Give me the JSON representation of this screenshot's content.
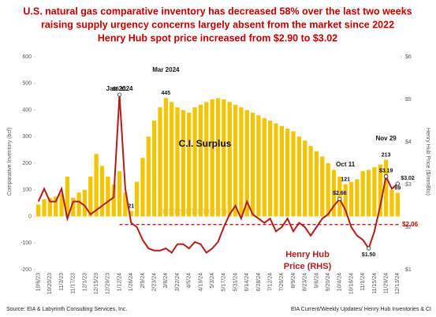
{
  "chart_data": {
    "type": "bar_line",
    "title": [
      "U.S. natural gas comparative inventory has decreased 58% over the last two weeks",
      "raising supply urgency concerns largely absent from the market since 2022",
      "Henry Hub spot price increased from $2.90 to $3.02"
    ],
    "y_label": "Comparative Inventory (bcf)",
    "y2_label": "Henry Hub Price ($/mmBtu)",
    "source_left": "Source: EIA & Labyrinth Consulting Services, Inc.",
    "source_right": "EIA Current/Weekly Updates/ Henry Hub Inventories & CI",
    "watermark": "aeberman.com",
    "annotations": [
      "Jan 2024",
      "Mar 2024",
      "C.I. Surplus",
      "Oct 11",
      "Nov 29",
      "Henry Hub",
      "Price (RHS)"
    ],
    "categories": [
      "10/6/23",
      null,
      "10/20/23",
      null,
      "11/3/23",
      null,
      "11/17/23",
      null,
      "12/1/23",
      null,
      "12/15/23",
      null,
      "12/29/23",
      null,
      "1/12/24",
      null,
      "1/26/24",
      null,
      "2/9/24",
      null,
      "2/23/24",
      null,
      "3/8/24",
      null,
      "3/22/24",
      null,
      "4/5/24",
      null,
      "4/19/24",
      null,
      "5/3/24",
      null,
      "5/17/24",
      null,
      "5/31/24",
      null,
      "6/14/24",
      null,
      "6/28/24",
      null,
      "7/12/24",
      null,
      "7/26/24",
      null,
      "8/9/24",
      null,
      "8/23/24",
      null,
      "9/6/24",
      null,
      "9/20/24",
      null,
      "10/4/24",
      null,
      "10/18/24",
      null,
      "11/1/24",
      null,
      "11/15/24",
      null,
      "11/29/24",
      null,
      "12/13/24"
    ],
    "series": [
      {
        "name": "C.I. Surplus",
        "type": "bar",
        "color": "#f5c400",
        "values": [
          45,
          65,
          70,
          75,
          85,
          150,
          70,
          90,
          100,
          150,
          235,
          190,
          150,
          120,
          170,
          90,
          21,
          130,
          220,
          300,
          360,
          410,
          445,
          430,
          410,
          400,
          390,
          410,
          420,
          430,
          440,
          445,
          440,
          430,
          420,
          410,
          400,
          390,
          380,
          370,
          360,
          350,
          340,
          330,
          320,
          300,
          285,
          265,
          245,
          225,
          200,
          175,
          150,
          121,
          130,
          140,
          170,
          175,
          185,
          195,
          213,
          100,
          89
        ],
        "value_labels": [
          null,
          null,
          null,
          null,
          null,
          null,
          null,
          null,
          null,
          null,
          null,
          null,
          null,
          null,
          null,
          null,
          "21",
          null,
          null,
          null,
          null,
          null,
          "445",
          null,
          null,
          null,
          null,
          null,
          null,
          null,
          null,
          null,
          null,
          null,
          null,
          null,
          null,
          null,
          null,
          null,
          null,
          null,
          null,
          null,
          null,
          null,
          null,
          null,
          null,
          null,
          null,
          null,
          null,
          "121",
          null,
          null,
          null,
          null,
          null,
          null,
          "213",
          null,
          "89"
        ]
      },
      {
        "name": "Henry Hub Price (RHS)",
        "type": "line",
        "axis": "y2",
        "color": "#b01c1c",
        "values": [
          2.6,
          2.9,
          2.6,
          2.6,
          2.9,
          2.2,
          2.6,
          2.6,
          2.5,
          2.3,
          2.4,
          2.5,
          2.6,
          2.7,
          5.11,
          2.9,
          2.1,
          2.0,
          1.7,
          1.5,
          1.45,
          1.45,
          1.5,
          1.4,
          1.6,
          1.6,
          1.5,
          1.65,
          1.6,
          1.4,
          1.5,
          1.65,
          2.0,
          2.3,
          2.5,
          2.2,
          2.6,
          2.3,
          2.2,
          2.1,
          2.2,
          1.9,
          2.0,
          2.2,
          1.9,
          2.1,
          2.0,
          1.8,
          2.0,
          2.2,
          2.3,
          2.5,
          2.66,
          2.4,
          2.0,
          1.8,
          1.7,
          1.5,
          1.9,
          2.5,
          3.19,
          2.9,
          3.02
        ],
        "value_labels": [
          null,
          null,
          null,
          null,
          null,
          null,
          null,
          null,
          null,
          null,
          null,
          null,
          null,
          null,
          "$5.11",
          null,
          null,
          null,
          null,
          null,
          null,
          null,
          null,
          null,
          null,
          null,
          null,
          null,
          null,
          null,
          null,
          null,
          null,
          null,
          null,
          null,
          null,
          null,
          null,
          null,
          null,
          null,
          null,
          null,
          null,
          null,
          null,
          null,
          null,
          null,
          null,
          null,
          "$2.66",
          null,
          null,
          null,
          null,
          "$1.50",
          null,
          null,
          "$3.19",
          null,
          "$3.02"
        ]
      }
    ],
    "reference_line": {
      "value": 2.06,
      "label": "$2.06",
      "axis": "y2",
      "color": "#c00000"
    },
    "ylim": [
      -200,
      600
    ],
    "yticks": [
      -200,
      -100,
      0,
      100,
      200,
      300,
      400,
      500,
      600
    ],
    "y2lim": [
      1,
      6
    ],
    "y2ticks": [
      {
        "value": 1,
        "label": "$1"
      },
      {
        "value": 2,
        "label": "$2"
      },
      {
        "value": 3,
        "label": "$3"
      },
      {
        "value": 4,
        "label": "$4"
      },
      {
        "value": 5,
        "label": "$5"
      },
      {
        "value": 6,
        "label": "$6"
      }
    ]
  }
}
